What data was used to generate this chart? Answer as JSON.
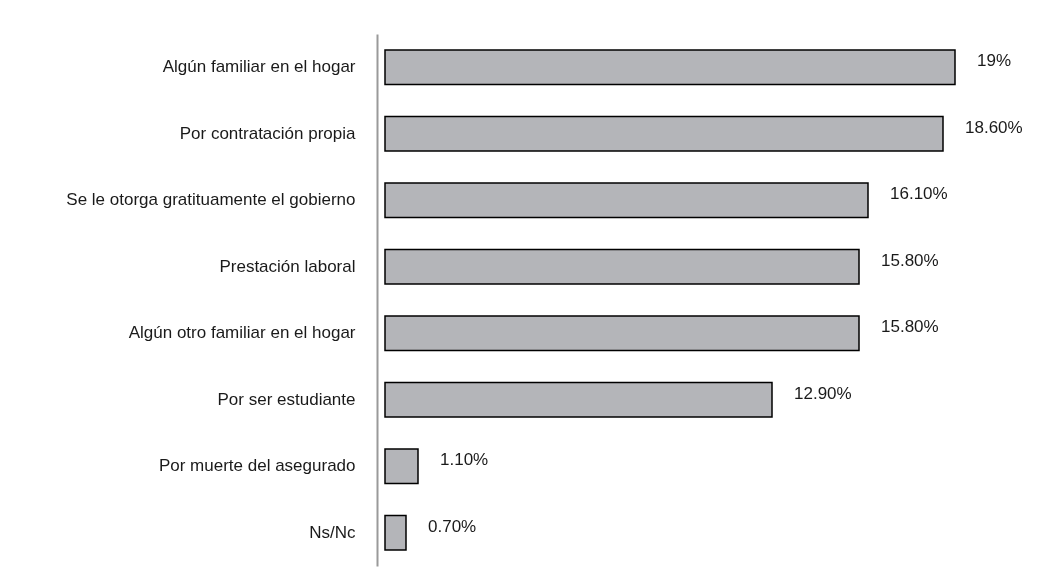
{
  "chart_data": {
    "type": "bar",
    "orientation": "horizontal",
    "categories": [
      "Algún familiar en el hogar",
      "Por contratación propia",
      "Se le otorga gratituamente el gobierno",
      "Prestación laboral",
      "Algún otro familiar en el hogar",
      "Por ser estudiante",
      "Por muerte del asegurado",
      "Ns/Nc"
    ],
    "values": [
      19,
      18.6,
      16.1,
      15.8,
      15.8,
      12.9,
      1.1,
      0.7
    ],
    "value_labels": [
      "19%",
      "18.60%",
      "16.10%",
      "15.80%",
      "15.80%",
      "12.90%",
      "1.10%",
      "0.70%"
    ],
    "color": "#b4b5b9"
  }
}
